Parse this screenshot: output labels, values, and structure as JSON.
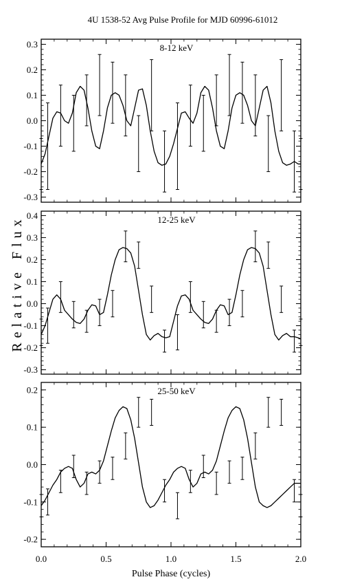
{
  "figure": {
    "title": "4U 1538-52 Avg Pulse Profile for MJD 60996-61012",
    "ylabel": "Relative Flux",
    "xlabel": "Pulse Phase (cycles)"
  },
  "chart_data": [
    {
      "type": "line",
      "label": "8-12 keV",
      "xlim": [
        0.0,
        2.0
      ],
      "ylim": [
        -0.32,
        0.32
      ],
      "yticks": [
        -0.3,
        -0.2,
        -0.1,
        0.0,
        0.1,
        0.2,
        0.3
      ],
      "ytick_labels": [
        "-0.3",
        "-0.2",
        "-0.1",
        "0.0",
        "0.1",
        "0.2",
        "0.3"
      ],
      "xticks": [
        0.0,
        0.5,
        1.0,
        1.5,
        2.0
      ],
      "xtick_labels": [],
      "points": {
        "x": [
          0.0,
          0.05,
          0.15,
          0.25,
          0.35,
          0.45,
          0.55,
          0.65,
          0.75,
          0.85,
          0.95,
          1.05,
          1.15,
          1.25,
          1.35,
          1.45,
          1.55,
          1.65,
          1.75,
          1.85,
          1.95,
          2.0
        ],
        "y": [
          -0.17,
          -0.1,
          0.02,
          -0.01,
          0.08,
          0.14,
          0.11,
          0.06,
          -0.09,
          0.1,
          -0.16,
          -0.1,
          0.02,
          -0.01,
          0.08,
          0.14,
          0.11,
          0.06,
          -0.09,
          0.1,
          -0.16,
          -0.17
        ],
        "err": [
          0.1,
          0.17,
          0.12,
          0.11,
          0.1,
          0.12,
          0.12,
          0.12,
          0.11,
          0.14,
          0.12,
          0.17,
          0.12,
          0.11,
          0.1,
          0.12,
          0.12,
          0.12,
          0.11,
          0.14,
          0.12,
          0.1
        ]
      },
      "curve": {
        "x": [
          0.0,
          0.03,
          0.06,
          0.09,
          0.12,
          0.15,
          0.18,
          0.21,
          0.24,
          0.27,
          0.3,
          0.33,
          0.36,
          0.39,
          0.42,
          0.45,
          0.48,
          0.51,
          0.54,
          0.57,
          0.6,
          0.63,
          0.66,
          0.69,
          0.72,
          0.75,
          0.78,
          0.81,
          0.84,
          0.87,
          0.9,
          0.93,
          0.96,
          0.99,
          1.02,
          1.05,
          1.08,
          1.11,
          1.14,
          1.17,
          1.2,
          1.23,
          1.26,
          1.29,
          1.32,
          1.35,
          1.38,
          1.41,
          1.44,
          1.47,
          1.5,
          1.53,
          1.56,
          1.59,
          1.62,
          1.65,
          1.68,
          1.71,
          1.74,
          1.77,
          1.8,
          1.83,
          1.86,
          1.89,
          1.92,
          1.95,
          1.98,
          2.0
        ],
        "y": [
          -0.17,
          -0.13,
          -0.06,
          0.01,
          0.035,
          0.03,
          0.0,
          -0.01,
          0.03,
          0.11,
          0.135,
          0.12,
          0.05,
          -0.04,
          -0.1,
          -0.11,
          -0.04,
          0.05,
          0.1,
          0.11,
          0.1,
          0.06,
          0.0,
          -0.02,
          0.05,
          0.12,
          0.125,
          0.06,
          -0.04,
          -0.12,
          -0.165,
          -0.175,
          -0.17,
          -0.14,
          -0.09,
          -0.03,
          0.03,
          0.035,
          0.01,
          -0.01,
          0.03,
          0.11,
          0.135,
          0.12,
          0.05,
          -0.04,
          -0.1,
          -0.11,
          -0.04,
          0.05,
          0.1,
          0.11,
          0.1,
          0.06,
          0.0,
          -0.02,
          0.05,
          0.12,
          0.135,
          0.07,
          -0.04,
          -0.12,
          -0.165,
          -0.175,
          -0.17,
          -0.16,
          -0.17,
          -0.17
        ]
      }
    },
    {
      "type": "line",
      "label": "12-25 keV",
      "xlim": [
        0.0,
        2.0
      ],
      "ylim": [
        -0.32,
        0.42
      ],
      "yticks": [
        -0.3,
        -0.2,
        -0.1,
        0.0,
        0.1,
        0.2,
        0.3,
        0.4
      ],
      "ytick_labels": [
        "-0.3",
        "-0.2",
        "-0.1",
        "0.0",
        "0.1",
        "0.2",
        "0.3",
        "0.4"
      ],
      "xticks": [
        0.0,
        0.5,
        1.0,
        1.5,
        2.0
      ],
      "xtick_labels": [],
      "points": {
        "x": [
          0.0,
          0.05,
          0.15,
          0.25,
          0.35,
          0.45,
          0.55,
          0.65,
          0.75,
          0.85,
          0.95,
          1.05,
          1.15,
          1.25,
          1.35,
          1.45,
          1.55,
          1.65,
          1.75,
          1.85,
          1.95,
          2.0
        ],
        "y": [
          -0.13,
          -0.1,
          0.03,
          -0.05,
          -0.08,
          -0.04,
          0.0,
          0.26,
          0.22,
          0.02,
          -0.17,
          -0.13,
          0.03,
          -0.05,
          -0.08,
          -0.04,
          0.0,
          0.26,
          0.22,
          0.02,
          -0.17,
          -0.13
        ],
        "err": [
          0.06,
          0.08,
          0.07,
          0.06,
          0.05,
          0.06,
          0.06,
          0.07,
          0.06,
          0.06,
          0.05,
          0.08,
          0.07,
          0.06,
          0.05,
          0.06,
          0.06,
          0.07,
          0.06,
          0.06,
          0.05,
          0.06
        ]
      },
      "curve": {
        "x": [
          0.0,
          0.03,
          0.06,
          0.09,
          0.12,
          0.15,
          0.18,
          0.21,
          0.24,
          0.27,
          0.3,
          0.33,
          0.36,
          0.39,
          0.42,
          0.45,
          0.48,
          0.51,
          0.54,
          0.57,
          0.6,
          0.63,
          0.66,
          0.69,
          0.72,
          0.75,
          0.78,
          0.81,
          0.84,
          0.87,
          0.9,
          0.93,
          0.96,
          0.99,
          1.02,
          1.05,
          1.08,
          1.11,
          1.14,
          1.17,
          1.2,
          1.23,
          1.26,
          1.29,
          1.32,
          1.35,
          1.38,
          1.41,
          1.44,
          1.47,
          1.5,
          1.53,
          1.56,
          1.59,
          1.62,
          1.65,
          1.68,
          1.71,
          1.74,
          1.77,
          1.8,
          1.83,
          1.86,
          1.89,
          1.92,
          1.95,
          1.98,
          2.0
        ],
        "y": [
          -0.14,
          -0.1,
          -0.04,
          0.02,
          0.04,
          0.02,
          -0.03,
          -0.05,
          -0.07,
          -0.085,
          -0.09,
          -0.07,
          -0.03,
          -0.005,
          -0.01,
          -0.05,
          -0.04,
          0.04,
          0.13,
          0.2,
          0.245,
          0.255,
          0.25,
          0.23,
          0.17,
          0.06,
          -0.05,
          -0.14,
          -0.165,
          -0.145,
          -0.135,
          -0.15,
          -0.155,
          -0.15,
          -0.08,
          -0.01,
          0.035,
          0.04,
          0.02,
          -0.03,
          -0.05,
          -0.07,
          -0.085,
          -0.09,
          -0.07,
          -0.03,
          -0.005,
          -0.01,
          -0.05,
          -0.04,
          0.04,
          0.13,
          0.2,
          0.245,
          0.255,
          0.25,
          0.23,
          0.17,
          0.06,
          -0.05,
          -0.14,
          -0.165,
          -0.145,
          -0.135,
          -0.15,
          -0.15,
          -0.155,
          -0.16
        ]
      }
    },
    {
      "type": "line",
      "label": "25-50 keV",
      "xlim": [
        0.0,
        2.0
      ],
      "ylim": [
        -0.22,
        0.22
      ],
      "yticks": [
        -0.2,
        -0.1,
        0.0,
        0.1,
        0.2
      ],
      "ytick_labels": [
        "-0.2",
        "-0.1",
        "0.0",
        "0.1",
        "0.2"
      ],
      "xticks": [
        0.0,
        0.5,
        1.0,
        1.5,
        2.0
      ],
      "xtick_labels": [
        "0.0",
        "0.5",
        "1.0",
        "1.5",
        "2.0"
      ],
      "points": {
        "x": [
          0.0,
          0.05,
          0.15,
          0.25,
          0.35,
          0.45,
          0.55,
          0.65,
          0.75,
          0.85,
          0.95,
          1.05,
          1.15,
          1.25,
          1.35,
          1.45,
          1.55,
          1.65,
          1.75,
          1.85,
          1.95,
          2.0
        ],
        "y": [
          -0.11,
          -0.1,
          -0.045,
          -0.005,
          -0.05,
          -0.02,
          -0.01,
          0.05,
          0.14,
          0.14,
          -0.07,
          -0.11,
          -0.045,
          -0.005,
          -0.05,
          -0.02,
          -0.01,
          0.05,
          0.14,
          0.14,
          -0.07,
          -0.11
        ],
        "err": [
          0.03,
          0.035,
          0.03,
          0.03,
          0.03,
          0.03,
          0.03,
          0.035,
          0.04,
          0.035,
          0.03,
          0.035,
          0.03,
          0.03,
          0.03,
          0.03,
          0.03,
          0.035,
          0.04,
          0.035,
          0.03,
          0.03
        ]
      },
      "curve": {
        "x": [
          0.0,
          0.03,
          0.06,
          0.09,
          0.12,
          0.15,
          0.18,
          0.21,
          0.24,
          0.27,
          0.3,
          0.33,
          0.36,
          0.39,
          0.42,
          0.45,
          0.48,
          0.51,
          0.54,
          0.57,
          0.6,
          0.63,
          0.66,
          0.69,
          0.72,
          0.75,
          0.78,
          0.81,
          0.84,
          0.87,
          0.9,
          0.93,
          0.96,
          0.99,
          1.02,
          1.05,
          1.08,
          1.11,
          1.14,
          1.17,
          1.2,
          1.23,
          1.26,
          1.29,
          1.32,
          1.35,
          1.38,
          1.41,
          1.44,
          1.47,
          1.5,
          1.53,
          1.56,
          1.59,
          1.62,
          1.65,
          1.68,
          1.71,
          1.74,
          1.77,
          1.8,
          1.83,
          1.86,
          1.89,
          1.92,
          1.95,
          1.98,
          2.0
        ],
        "y": [
          -0.11,
          -0.095,
          -0.075,
          -0.055,
          -0.04,
          -0.02,
          -0.01,
          -0.005,
          -0.01,
          -0.04,
          -0.06,
          -0.05,
          -0.025,
          -0.02,
          -0.025,
          -0.015,
          0.01,
          0.05,
          0.09,
          0.125,
          0.145,
          0.155,
          0.15,
          0.12,
          0.07,
          0.005,
          -0.06,
          -0.1,
          -0.115,
          -0.11,
          -0.095,
          -0.075,
          -0.055,
          -0.04,
          -0.02,
          -0.01,
          -0.005,
          -0.01,
          -0.04,
          -0.06,
          -0.05,
          -0.025,
          -0.02,
          -0.025,
          -0.015,
          0.01,
          0.05,
          0.09,
          0.125,
          0.145,
          0.155,
          0.15,
          0.12,
          0.07,
          0.005,
          -0.06,
          -0.1,
          -0.11,
          -0.115,
          -0.11,
          -0.1,
          -0.09,
          -0.08,
          -0.07,
          -0.06,
          -0.05,
          -0.05,
          -0.05
        ]
      }
    }
  ]
}
